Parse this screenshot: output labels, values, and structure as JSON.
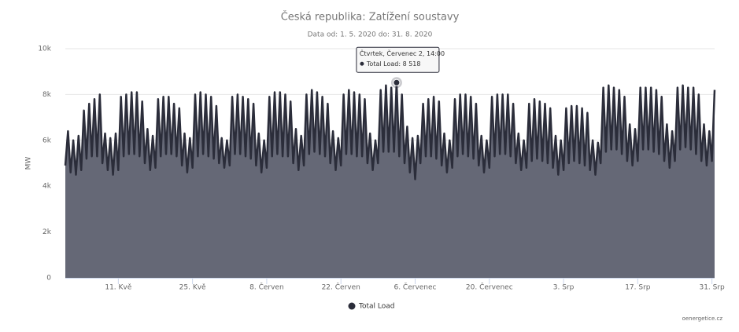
{
  "chart_data": {
    "type": "area",
    "title": "Česká republika: Zatížení soustavy",
    "subtitle": "Data od: 1. 5. 2020 do: 31. 8. 2020",
    "y_label": "MW",
    "credit": "oenergetice.cz",
    "xlim": [
      0,
      122.5
    ],
    "xticks": [
      {
        "value": 10,
        "label": "11. Kvě"
      },
      {
        "value": 24,
        "label": "25. Kvě"
      },
      {
        "value": 38,
        "label": "8. Červen"
      },
      {
        "value": 52,
        "label": "22. Červen"
      },
      {
        "value": 66,
        "label": "6. Červenec"
      },
      {
        "value": 80,
        "label": "20. Červenec"
      },
      {
        "value": 94,
        "label": "3. Srp"
      },
      {
        "value": 108,
        "label": "17. Srp"
      },
      {
        "value": 122,
        "label": "31. Srp"
      }
    ],
    "ylim": [
      0,
      10000
    ],
    "yticks": [
      0,
      {
        "value": 2000,
        "label": "2k"
      },
      {
        "value": 4000,
        "label": "4k"
      },
      {
        "value": 6000,
        "label": "6k"
      },
      {
        "value": 8000,
        "label": "8k"
      },
      {
        "value": 10000,
        "label": "10k"
      }
    ],
    "grid": true,
    "legend": "bottom",
    "x": [
      0,
      0.5,
      1,
      1.5,
      2,
      2.5,
      3,
      3.5,
      4,
      4.5,
      5,
      5.5,
      6,
      6.5,
      7,
      7.5,
      8,
      8.5,
      9,
      9.5,
      10,
      10.5,
      11,
      11.5,
      12,
      12.5,
      13,
      13.5,
      14,
      14.5,
      15,
      15.5,
      16,
      16.5,
      17,
      17.5,
      18,
      18.5,
      19,
      19.5,
      20,
      20.5,
      21,
      21.5,
      22,
      22.5,
      23,
      23.5,
      24,
      24.5,
      25,
      25.5,
      26,
      26.5,
      27,
      27.5,
      28,
      28.5,
      29,
      29.5,
      30,
      30.5,
      31,
      31.5,
      32,
      32.5,
      33,
      33.5,
      34,
      34.5,
      35,
      35.5,
      36,
      36.5,
      37,
      37.5,
      38,
      38.5,
      39,
      39.5,
      40,
      40.5,
      41,
      41.5,
      42,
      42.5,
      43,
      43.5,
      44,
      44.5,
      45,
      45.5,
      46,
      46.5,
      47,
      47.5,
      48,
      48.5,
      49,
      49.5,
      50,
      50.5,
      51,
      51.5,
      52,
      52.5,
      53,
      53.5,
      54,
      54.5,
      55,
      55.5,
      56,
      56.5,
      57,
      57.5,
      58,
      58.5,
      59,
      59.5,
      60,
      60.5,
      61,
      61.5,
      62,
      62.5,
      63,
      63.5,
      64,
      64.5,
      65,
      65.5,
      66,
      66.5,
      67,
      67.5,
      68,
      68.5,
      69,
      69.5,
      70,
      70.5,
      71,
      71.5,
      72,
      72.5,
      73,
      73.5,
      74,
      74.5,
      75,
      75.5,
      76,
      76.5,
      77,
      77.5,
      78,
      78.5,
      79,
      79.5,
      80,
      80.5,
      81,
      81.5,
      82,
      82.5,
      83,
      83.5,
      84,
      84.5,
      85,
      85.5,
      86,
      86.5,
      87,
      87.5,
      88,
      88.5,
      89,
      89.5,
      90,
      90.5,
      91,
      91.5,
      92,
      92.5,
      93,
      93.5,
      94,
      94.5,
      95,
      95.5,
      96,
      96.5,
      97,
      97.5,
      98,
      98.5,
      99,
      99.5,
      100,
      100.5,
      101,
      101.5,
      102,
      102.5,
      103,
      103.5,
      104,
      104.5,
      105,
      105.5,
      106,
      106.5,
      107,
      107.5,
      108,
      108.5,
      109,
      109.5,
      110,
      110.5,
      111,
      111.5,
      112,
      112.5,
      113,
      113.5,
      114,
      114.5,
      115,
      115.5,
      116,
      116.5,
      117,
      117.5,
      118,
      118.5,
      119,
      119.5,
      120,
      120.5,
      121,
      121.5,
      122,
      122.5
    ],
    "series": [
      {
        "name": "Total Load",
        "color": "#2b2d3a",
        "fill": "#656876",
        "values": [
          4900,
          6400,
          4600,
          6000,
          4500,
          6200,
          4700,
          7300,
          5200,
          7600,
          5300,
          7800,
          5300,
          8000,
          5000,
          6300,
          4700,
          6100,
          4500,
          6300,
          4700,
          7900,
          5300,
          8000,
          5400,
          8100,
          5400,
          8100,
          5300,
          7700,
          5000,
          6500,
          4700,
          6200,
          4800,
          7800,
          5300,
          7900,
          5400,
          7900,
          5400,
          7600,
          5300,
          7400,
          4900,
          6300,
          4600,
          6100,
          4800,
          8000,
          5300,
          8100,
          5400,
          8000,
          5300,
          7900,
          5200,
          7500,
          5000,
          6100,
          4800,
          6000,
          4900,
          7900,
          5400,
          8000,
          5400,
          7900,
          5300,
          7800,
          5200,
          7600,
          4900,
          6300,
          4600,
          6000,
          4800,
          7900,
          5300,
          8100,
          5400,
          8100,
          5300,
          8000,
          5300,
          7700,
          5000,
          6500,
          4700,
          6200,
          4900,
          8000,
          5400,
          8200,
          5500,
          8100,
          5400,
          7900,
          5300,
          7600,
          5000,
          6400,
          4700,
          6100,
          4900,
          8000,
          5400,
          8200,
          5400,
          8100,
          5300,
          8000,
          5300,
          7800,
          5000,
          6300,
          4700,
          6000,
          5000,
          8200,
          5500,
          8400,
          5500,
          8300,
          5500,
          8518,
          5300,
          8000,
          5000,
          6600,
          4600,
          6100,
          4300,
          6200,
          5000,
          7600,
          5300,
          7800,
          5300,
          7900,
          5200,
          7700,
          4900,
          6300,
          4600,
          6000,
          4800,
          7800,
          5300,
          8000,
          5400,
          8000,
          5300,
          7900,
          5200,
          7600,
          4900,
          6200,
          4600,
          6000,
          4800,
          7900,
          5300,
          8000,
          5400,
          8000,
          5400,
          8000,
          5300,
          7600,
          5000,
          6300,
          4700,
          6000,
          4800,
          7600,
          5100,
          7800,
          5200,
          7700,
          5100,
          7600,
          5000,
          7400,
          4800,
          6200,
          4500,
          6000,
          4700,
          7400,
          5000,
          7500,
          5100,
          7500,
          5000,
          7400,
          4900,
          7200,
          4700,
          6000,
          4500,
          5900,
          5000,
          8300,
          5500,
          8400,
          5600,
          8300,
          5600,
          8200,
          5400,
          7900,
          5100,
          6700,
          4900,
          6500,
          5100,
          8300,
          5600,
          8300,
          5600,
          8300,
          5500,
          8200,
          5400,
          7900,
          5100,
          6700,
          4800,
          6400,
          5100,
          8300,
          5600,
          8400,
          5700,
          8300,
          5600,
          8300,
          5400,
          8000,
          5100,
          6700,
          4900,
          6400,
          5100,
          8200
        ]
      }
    ],
    "tooltip": {
      "header": "Čtvrtek, Červenec 2, 14:00",
      "text": "Total Load: 8 518",
      "x": 62.5,
      "value": 8518
    }
  }
}
